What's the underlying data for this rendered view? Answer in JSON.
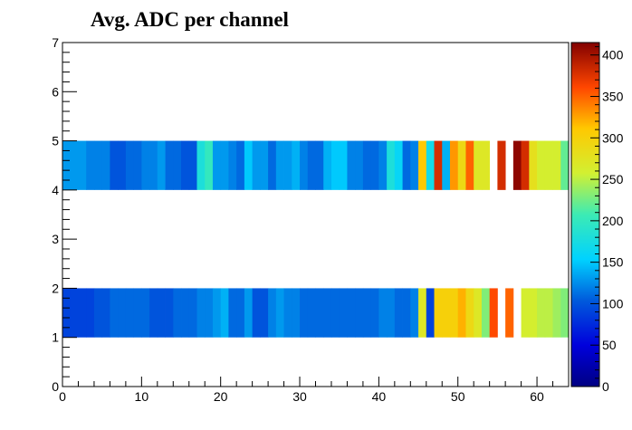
{
  "chart_data": {
    "type": "heatmap",
    "title": "Avg. ADC per channel",
    "xlabel": "",
    "ylabel": "",
    "xlim": [
      0,
      64
    ],
    "ylim": [
      0,
      7
    ],
    "x_ticks": [
      0,
      10,
      20,
      30,
      40,
      50,
      60
    ],
    "y_ticks": [
      0,
      1,
      2,
      3,
      4,
      5,
      6,
      7
    ],
    "colorbar": {
      "min": 0,
      "max": 415,
      "ticks": [
        0,
        50,
        100,
        150,
        200,
        250,
        300,
        350,
        400
      ],
      "position": "right"
    },
    "rows": [
      {
        "y_range": [
          4,
          5
        ],
        "values": [
          130,
          130,
          130,
          120,
          120,
          120,
          100,
          100,
          110,
          110,
          120,
          120,
          130,
          110,
          110,
          100,
          100,
          180,
          200,
          130,
          130,
          120,
          110,
          150,
          130,
          130,
          110,
          130,
          130,
          140,
          120,
          110,
          110,
          140,
          150,
          150,
          120,
          120,
          110,
          110,
          120,
          180,
          160,
          110,
          120,
          310,
          170,
          380,
          140,
          330,
          290,
          350,
          270,
          270,
          null,
          380,
          null,
          410,
          380,
          280,
          260,
          260,
          260,
          220
        ],
        "label_values": []
      },
      {
        "y_range": [
          1,
          2
        ],
        "values": [
          90,
          90,
          90,
          90,
          100,
          100,
          110,
          110,
          110,
          110,
          110,
          100,
          100,
          100,
          110,
          110,
          110,
          120,
          120,
          130,
          140,
          110,
          110,
          130,
          100,
          100,
          120,
          130,
          120,
          120,
          110,
          110,
          110,
          110,
          110,
          110,
          110,
          110,
          110,
          110,
          120,
          120,
          110,
          110,
          120,
          270,
          90,
          300,
          300,
          300,
          320,
          290,
          270,
          230,
          360,
          null,
          350,
          null,
          260,
          260,
          250,
          250,
          240,
          230
        ],
        "label_values": []
      }
    ],
    "grid": false
  }
}
